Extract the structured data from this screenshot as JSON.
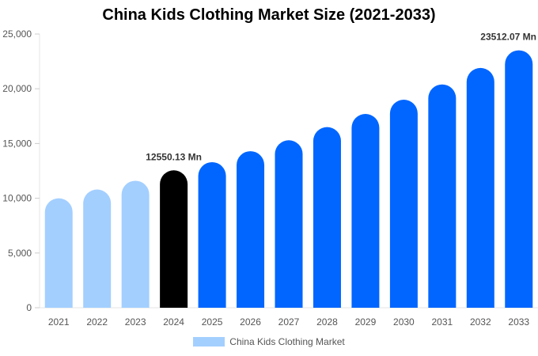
{
  "chart_data": {
    "type": "bar",
    "title": "China Kids Clothing Market Size (2021-2033)",
    "categories": [
      "2021",
      "2022",
      "2023",
      "2024",
      "2025",
      "2026",
      "2027",
      "2028",
      "2029",
      "2030",
      "2031",
      "2032",
      "2033"
    ],
    "series": [
      {
        "name": "China Kids Clothing Market",
        "values": [
          10000,
          10800,
          11600,
          12550.13,
          13300,
          14300,
          15300,
          16500,
          17700,
          19000,
          20400,
          21900,
          23512.07
        ]
      }
    ],
    "ylim": [
      0,
      25000
    ],
    "yticks": [
      0,
      5000,
      10000,
      15000,
      20000,
      25000
    ],
    "ytick_labels": [
      "0",
      "5,000",
      "10,000",
      "15,000",
      "20,000",
      "25,000"
    ],
    "grid": false,
    "legend_position": "bottom",
    "bar_colors": [
      "#a3cfff",
      "#a3cfff",
      "#a3cfff",
      "#000000",
      "#0066ff",
      "#0066ff",
      "#0066ff",
      "#0066ff",
      "#0066ff",
      "#0066ff",
      "#0066ff",
      "#0066ff",
      "#0066ff"
    ],
    "annotations": [
      {
        "category": "2024",
        "text": "12550.13 Mn"
      },
      {
        "category": "2033",
        "text": "23512.07 Mn"
      }
    ]
  }
}
